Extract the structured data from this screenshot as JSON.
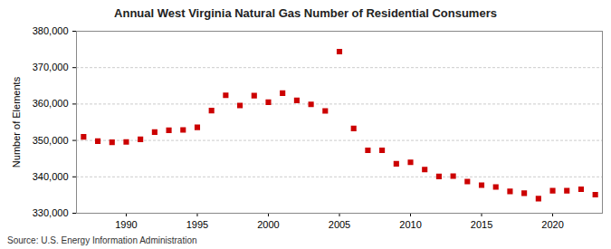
{
  "chart_data": {
    "type": "scatter",
    "title": "Annual West Virginia Natural Gas Number of Residential Consumers",
    "y_label": "Number of Elements",
    "source": "Source: U.S. Energy Information Administration",
    "marker": "square",
    "color": "#cc0000",
    "grid": true,
    "x": [
      1987,
      1988,
      1989,
      1990,
      1991,
      1992,
      1993,
      1994,
      1995,
      1996,
      1997,
      1998,
      1999,
      2000,
      2001,
      2002,
      2003,
      2004,
      2005,
      2006,
      2007,
      2008,
      2009,
      2010,
      2011,
      2012,
      2013,
      2014,
      2015,
      2016,
      2017,
      2018,
      2019,
      2020,
      2021,
      2022,
      2023
    ],
    "values": [
      351000,
      349800,
      349500,
      349600,
      350300,
      352300,
      352800,
      352900,
      353600,
      358200,
      362400,
      359600,
      362300,
      360500,
      363000,
      361000,
      359900,
      358100,
      374400,
      353300,
      347300,
      347300,
      343600,
      344000,
      342000,
      340100,
      340200,
      338700,
      337700,
      337200,
      336000,
      335500,
      334000,
      336200,
      336200,
      336600,
      335100
    ],
    "xlim": [
      1986.5,
      2023.5
    ],
    "xticks": [
      1990,
      1995,
      2000,
      2005,
      2010,
      2015,
      2020
    ],
    "ylim": [
      330000,
      380000
    ],
    "yticks": [
      {
        "value": 330000,
        "label": "330,000"
      },
      {
        "value": 340000,
        "label": "340,000"
      },
      {
        "value": 350000,
        "label": "350,000"
      },
      {
        "value": 360000,
        "label": "360,000"
      },
      {
        "value": 370000,
        "label": "370,000"
      },
      {
        "value": 380000,
        "label": "380,000"
      }
    ]
  }
}
